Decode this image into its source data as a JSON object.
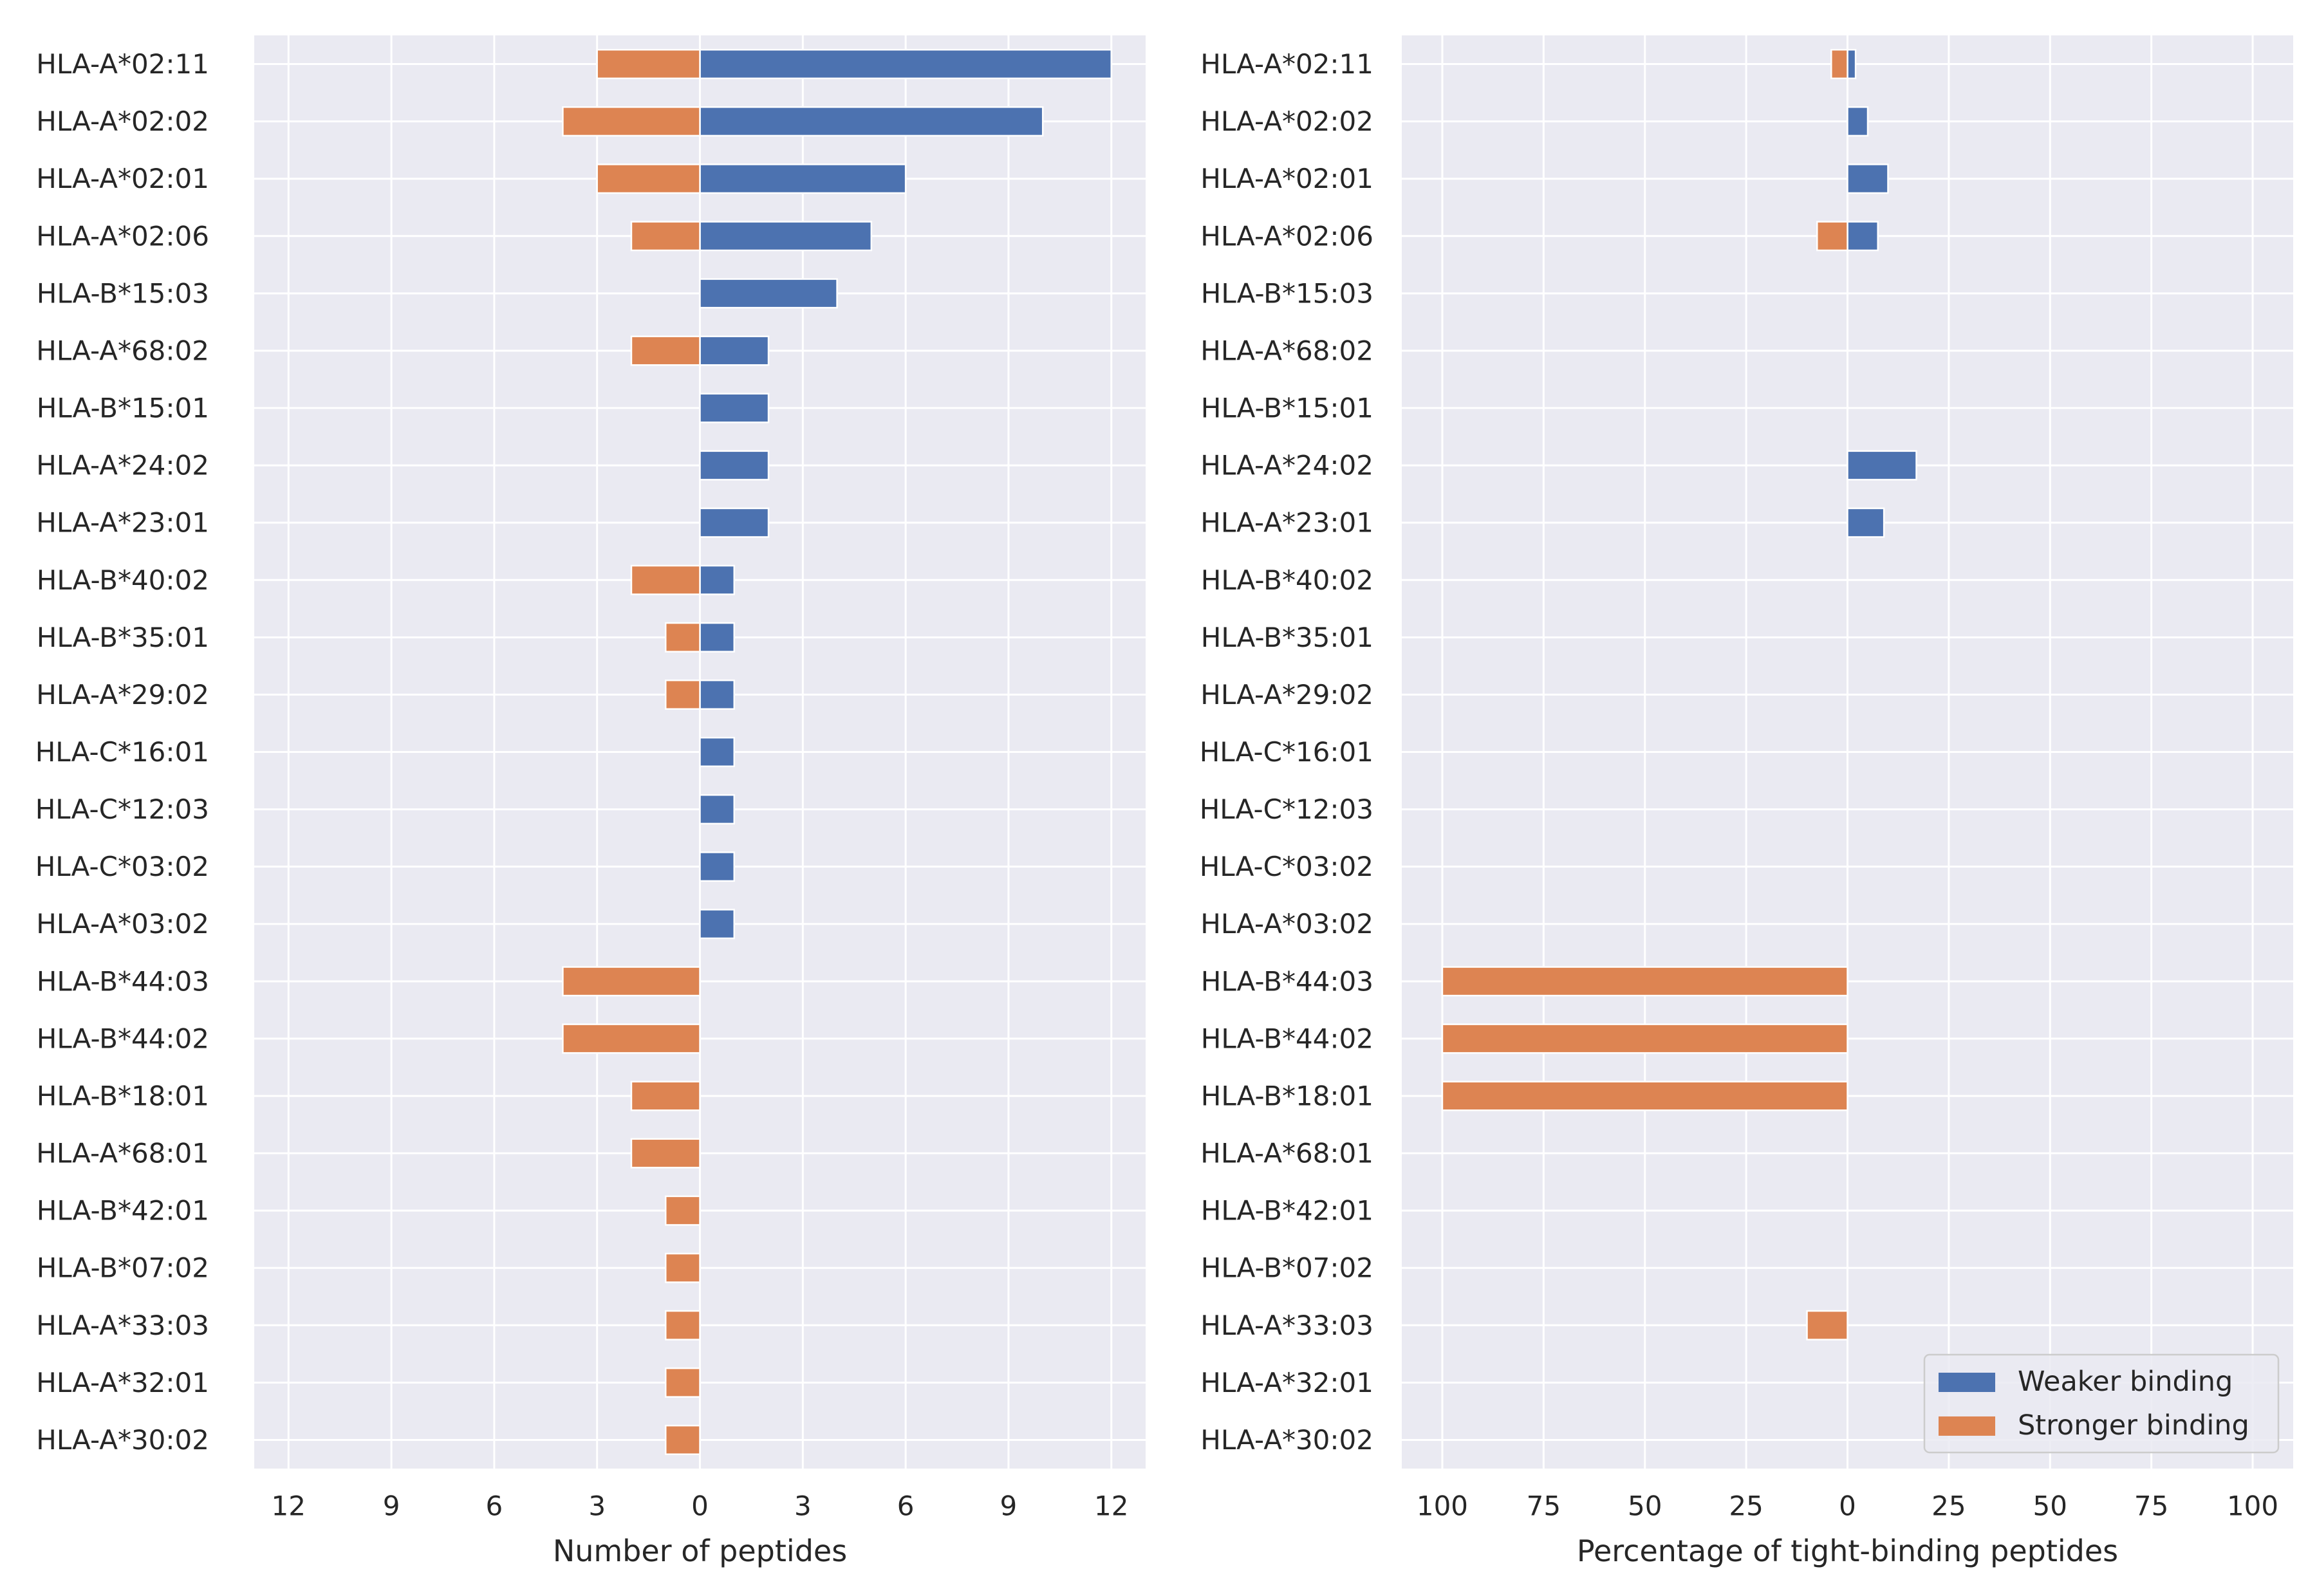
{
  "colors": {
    "weaker": "#4c72b0",
    "stronger": "#dd8452",
    "plot_bg": "#eaeaf2",
    "grid": "#ffffff",
    "text": "#262626"
  },
  "legend": {
    "placement": "lower-right",
    "entries": [
      "Weaker binding",
      "Stronger binding"
    ]
  },
  "chart_data": [
    {
      "type": "bar",
      "orientation": "horizontal",
      "layout": "diverging",
      "xlabel": "Number of peptides",
      "xlim": [
        -13,
        13
      ],
      "xticks": [
        -12,
        -9,
        -6,
        -3,
        0,
        3,
        6,
        9,
        12
      ],
      "xtick_labels": [
        "12",
        "9",
        "6",
        "3",
        "0",
        "3",
        "6",
        "9",
        "12"
      ],
      "grid": true,
      "categories": [
        "HLA-A*02:11",
        "HLA-A*02:02",
        "HLA-A*02:01",
        "HLA-A*02:06",
        "HLA-B*15:03",
        "HLA-A*68:02",
        "HLA-B*15:01",
        "HLA-A*24:02",
        "HLA-A*23:01",
        "HLA-B*40:02",
        "HLA-B*35:01",
        "HLA-A*29:02",
        "HLA-C*16:01",
        "HLA-C*12:03",
        "HLA-C*03:02",
        "HLA-A*03:02",
        "HLA-B*44:03",
        "HLA-B*44:02",
        "HLA-B*18:01",
        "HLA-A*68:01",
        "HLA-B*42:01",
        "HLA-B*07:02",
        "HLA-A*33:03",
        "HLA-A*32:01",
        "HLA-A*30:02"
      ],
      "series": [
        {
          "name": "Weaker binding",
          "side": "right",
          "values": [
            12,
            10,
            6,
            5,
            4,
            2,
            2,
            2,
            2,
            1,
            1,
            1,
            1,
            1,
            1,
            1,
            0,
            0,
            0,
            0,
            0,
            0,
            0,
            0,
            0
          ]
        },
        {
          "name": "Stronger binding",
          "side": "left",
          "values": [
            3,
            4,
            3,
            2,
            0,
            2,
            0,
            0,
            0,
            2,
            1,
            1,
            0,
            0,
            0,
            0,
            4,
            4,
            2,
            2,
            1,
            1,
            1,
            1,
            1
          ]
        }
      ]
    },
    {
      "type": "bar",
      "orientation": "horizontal",
      "layout": "diverging",
      "xlabel": "Percentage of tight-binding peptides",
      "xlim": [
        -110,
        110
      ],
      "xticks": [
        -100,
        -75,
        -50,
        -25,
        0,
        25,
        50,
        75,
        100
      ],
      "xtick_labels": [
        "100",
        "75",
        "50",
        "25",
        "0",
        "25",
        "50",
        "75",
        "100"
      ],
      "grid": true,
      "categories": [
        "HLA-A*02:11",
        "HLA-A*02:02",
        "HLA-A*02:01",
        "HLA-A*02:06",
        "HLA-B*15:03",
        "HLA-A*68:02",
        "HLA-B*15:01",
        "HLA-A*24:02",
        "HLA-A*23:01",
        "HLA-B*40:02",
        "HLA-B*35:01",
        "HLA-A*29:02",
        "HLA-C*16:01",
        "HLA-C*12:03",
        "HLA-C*03:02",
        "HLA-A*03:02",
        "HLA-B*44:03",
        "HLA-B*44:02",
        "HLA-B*18:01",
        "HLA-A*68:01",
        "HLA-B*42:01",
        "HLA-B*07:02",
        "HLA-A*33:03",
        "HLA-A*32:01",
        "HLA-A*30:02"
      ],
      "series": [
        {
          "name": "Weaker binding",
          "side": "right",
          "values": [
            2,
            5,
            10,
            7.5,
            0,
            0,
            0,
            17,
            9,
            0,
            0,
            0,
            0,
            0,
            0,
            0,
            0,
            0,
            0,
            0,
            0,
            0,
            0,
            0,
            0
          ]
        },
        {
          "name": "Stronger binding",
          "side": "left",
          "values": [
            4,
            0,
            0,
            7.5,
            0,
            0,
            0,
            0,
            0,
            0,
            0,
            0,
            0,
            0,
            0,
            0,
            100,
            100,
            100,
            0,
            0,
            0,
            10,
            0,
            0
          ]
        }
      ]
    }
  ]
}
